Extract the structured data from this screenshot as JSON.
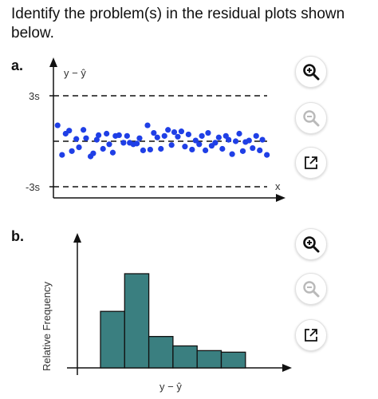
{
  "question": "Identify the problem(s) in the residual plots shown below.",
  "part_a": {
    "label": "a.",
    "y_axis_label": "y − ŷ",
    "upper_label": "3s",
    "lower_label": "-3s",
    "x_axis_label": "x",
    "tools": [
      {
        "name": "zoom-in",
        "icon": "zoom-in-icon"
      },
      {
        "name": "zoom-out",
        "icon": "zoom-out-icon"
      },
      {
        "name": "open-new-window",
        "icon": "external-link-icon"
      }
    ]
  },
  "part_b": {
    "label": "b.",
    "y_axis_label": "Relative Frequency",
    "x_axis_label": "y − ŷ",
    "tools": [
      {
        "name": "zoom-in",
        "icon": "zoom-in-icon"
      },
      {
        "name": "zoom-out",
        "icon": "zoom-out-icon"
      },
      {
        "name": "open-new-window",
        "icon": "external-link-icon"
      }
    ]
  },
  "colors": {
    "dot": "#1f3fe6",
    "bar_fill": "#3a7f80",
    "bar_stroke": "#111111",
    "disabled_icon": "#b9b9b9"
  },
  "chart_data": [
    {
      "type": "scatter",
      "xlabel": "x",
      "ylabel": "y − ŷ",
      "ylim": [
        -3,
        3
      ],
      "reference_lines": [
        3,
        0,
        -3
      ],
      "x": [
        0.2,
        0.7,
        1.1,
        1.5,
        1.8,
        2.3,
        2.6,
        3.1,
        3.4,
        3.9,
        4.2,
        4.6,
        4.8,
        5.3,
        5.7,
        6.0,
        6.4,
        6.7,
        7.1,
        7.6,
        8.0,
        8.3,
        8.7,
        9.1,
        9.4,
        9.8,
        10.3,
        10.6,
        11.0,
        11.4,
        11.8,
        12.2,
        12.6,
        13.0,
        13.3,
        13.7,
        14.1,
        14.5,
        14.9,
        15.3,
        15.7,
        16.1,
        16.4,
        16.8,
        17.1,
        17.5,
        17.9,
        18.3,
        18.7,
        19.1,
        19.4,
        19.8,
        20.2,
        20.6,
        21.0,
        21.3,
        21.7,
        22.1,
        22.5,
        22.9,
        23.2,
        23.7
      ],
      "y": [
        1.05,
        -0.9,
        0.5,
        0.7,
        -0.65,
        0.15,
        -0.4,
        0.75,
        0.2,
        -1.0,
        -0.8,
        0.1,
        0.4,
        -0.5,
        0.5,
        -0.2,
        -0.75,
        0.35,
        0.4,
        -0.1,
        0.35,
        -0.1,
        -0.2,
        -0.15,
        0.2,
        -0.6,
        1.05,
        -0.55,
        0.55,
        0.25,
        -0.5,
        0.35,
        0.75,
        -0.25,
        0.6,
        0.3,
        0.65,
        -0.35,
        0.45,
        -0.55,
        0.05,
        -0.2,
        0.35,
        -0.6,
        0.55,
        -0.3,
        -0.1,
        0.25,
        -0.5,
        0.35,
        0.1,
        -0.85,
        0.0,
        0.5,
        -0.65,
        -0.05,
        0.05,
        -0.45,
        0.35,
        -0.6,
        0.1,
        -0.9
      ]
    },
    {
      "type": "bar",
      "xlabel": "y − ŷ",
      "ylabel": "Relative Frequency",
      "categories": [
        "1",
        "2",
        "3",
        "4",
        "5",
        "6"
      ],
      "values": [
        0.18,
        0.3,
        0.1,
        0.07,
        0.055,
        0.05
      ]
    }
  ]
}
